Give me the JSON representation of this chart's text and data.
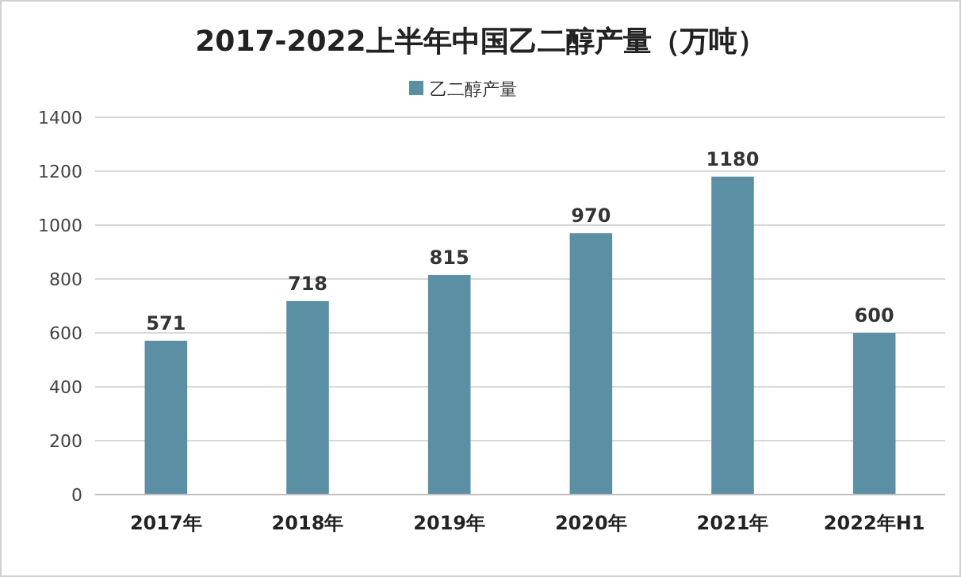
{
  "chart_data": {
    "type": "bar",
    "title": "2017-2022上半年中国乙二醇产量（万吨）",
    "categories": [
      "2017年",
      "2018年",
      "2019年",
      "2020年",
      "2021年",
      "2022年H1"
    ],
    "series": [
      {
        "name": "乙二醇产量",
        "color": "#5b8fa3",
        "values": [
          571,
          718,
          815,
          970,
          1180,
          600
        ]
      }
    ],
    "ylim": [
      0,
      1400
    ],
    "yticks": [
      0,
      200,
      400,
      600,
      800,
      1000,
      1200,
      1400
    ],
    "grid": "y",
    "legend": "top",
    "data_labels": true
  }
}
